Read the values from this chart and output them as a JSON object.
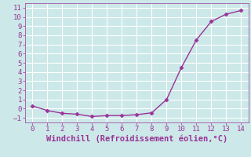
{
  "x": [
    0,
    1,
    2,
    3,
    4,
    5,
    6,
    7,
    8,
    9,
    10,
    11,
    12,
    13,
    14
  ],
  "y": [
    0.3,
    -0.2,
    -0.5,
    -0.6,
    -0.85,
    -0.75,
    -0.75,
    -0.65,
    -0.45,
    1.0,
    4.5,
    7.5,
    9.5,
    10.3,
    10.7
  ],
  "line_color": "#993399",
  "marker": "D",
  "marker_size": 2.5,
  "xlabel": "Windchill (Refroidissement éolien,°C)",
  "xlabel_color": "#993399",
  "xlabel_fontsize": 7.5,
  "xlim": [
    -0.5,
    14.5
  ],
  "ylim": [
    -1.5,
    11.5
  ],
  "xticks": [
    0,
    1,
    2,
    3,
    4,
    5,
    6,
    7,
    8,
    9,
    10,
    11,
    12,
    13,
    14
  ],
  "yticks": [
    -1,
    0,
    1,
    2,
    3,
    4,
    5,
    6,
    7,
    8,
    9,
    10,
    11
  ],
  "bg_color": "#cce8e8",
  "grid_color": "#ffffff",
  "tick_label_color": "#993399",
  "tick_label_fontsize": 6.5,
  "line_width": 1.0
}
